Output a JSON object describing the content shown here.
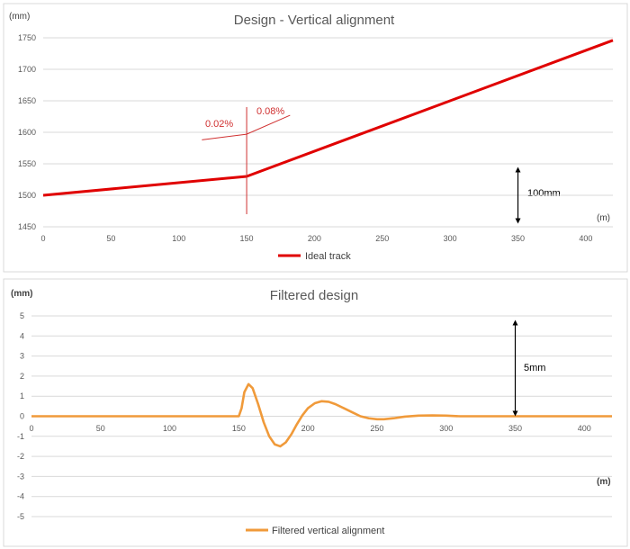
{
  "chart_data": [
    {
      "type": "line",
      "title": "Design - Vertical alignment",
      "ylabel": "(mm)",
      "xlabel": "(m)",
      "xlim": [
        0,
        420
      ],
      "ylim": [
        1450,
        1750
      ],
      "xticks": [
        0,
        50,
        100,
        150,
        200,
        250,
        300,
        350,
        400
      ],
      "yticks": [
        1450,
        1500,
        1550,
        1600,
        1650,
        1700,
        1750
      ],
      "grid": true,
      "legend_position": "bottom",
      "series": [
        {
          "name": "Ideal track",
          "color": "#e00000",
          "x": [
            0,
            150,
            420
          ],
          "y": [
            1500,
            1530,
            1746
          ]
        }
      ],
      "annotations": {
        "slope_left": "0.02%",
        "slope_right": "0.08%",
        "break_x": 150,
        "scale_label": "100mm",
        "scale_x": 350,
        "scale_range": [
          1455,
          1545
        ],
        "annotation_color": "#d03030"
      }
    },
    {
      "type": "line",
      "title": "Filtered design",
      "ylabel": "(mm)",
      "xlabel": "(m)",
      "xlim": [
        0,
        420
      ],
      "ylim": [
        -5,
        5
      ],
      "xticks": [
        0,
        50,
        100,
        150,
        200,
        250,
        300,
        350,
        400
      ],
      "yticks": [
        5,
        4,
        3,
        2,
        1,
        0,
        -1,
        -2,
        -3,
        -4,
        -5
      ],
      "grid": true,
      "legend_position": "bottom",
      "series": [
        {
          "name": "Filtered vertical alignment",
          "color": "#f09a3a",
          "x": [
            0,
            150,
            152,
            154,
            157,
            160,
            164,
            168,
            172,
            176,
            180,
            184,
            188,
            192,
            196,
            200,
            205,
            210,
            215,
            220,
            226,
            232,
            238,
            244,
            250,
            255,
            262,
            270,
            280,
            290,
            300,
            310,
            420
          ],
          "y": [
            0,
            0,
            0.4,
            1.2,
            1.6,
            1.4,
            0.6,
            -0.3,
            -1.0,
            -1.4,
            -1.5,
            -1.3,
            -0.9,
            -0.4,
            0.05,
            0.4,
            0.65,
            0.75,
            0.72,
            0.6,
            0.4,
            0.2,
            0.0,
            -0.1,
            -0.15,
            -0.15,
            -0.1,
            -0.02,
            0.03,
            0.04,
            0.03,
            0,
            0
          ]
        }
      ],
      "annotations": {
        "scale_label": "5mm",
        "scale_x": 350,
        "scale_range": [
          0,
          4.8
        ]
      }
    }
  ]
}
